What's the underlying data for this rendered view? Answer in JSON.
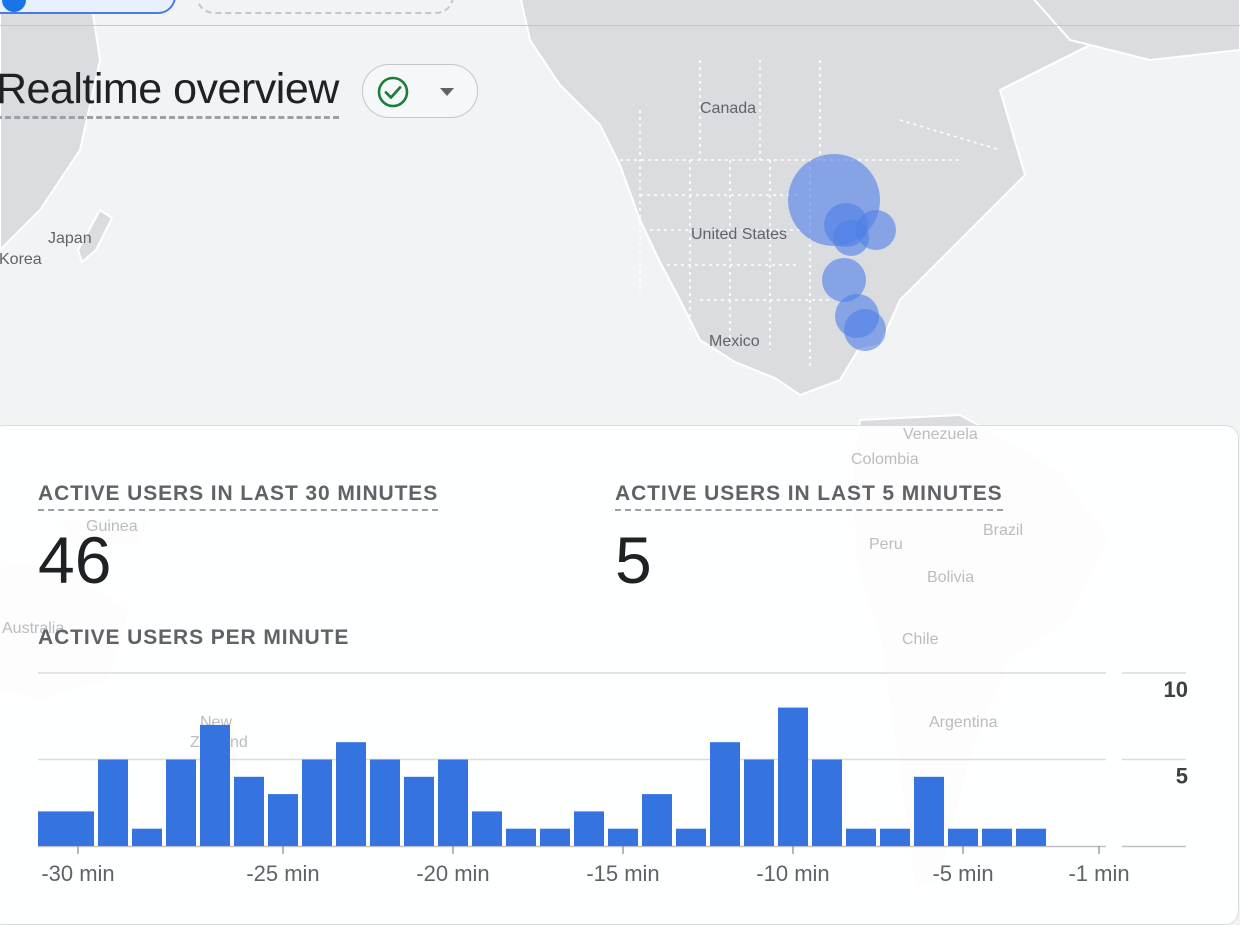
{
  "header": {
    "title": "Realtime overview"
  },
  "map": {
    "labels": [
      {
        "key": "canada",
        "text": "Canada"
      },
      {
        "key": "united-states",
        "text": "United States"
      },
      {
        "key": "mexico",
        "text": "Mexico"
      },
      {
        "key": "japan",
        "text": "Japan"
      },
      {
        "key": "korea",
        "text": "Korea"
      },
      {
        "key": "venezuela",
        "text": "Venezuela"
      },
      {
        "key": "colombia",
        "text": "Colombia"
      },
      {
        "key": "guinea",
        "text": "Guinea"
      },
      {
        "key": "peru",
        "text": "Peru"
      },
      {
        "key": "brazil",
        "text": "Brazil"
      },
      {
        "key": "bolivia",
        "text": "Bolivia"
      },
      {
        "key": "australia",
        "text": "Australia"
      },
      {
        "key": "chile",
        "text": "Chile"
      },
      {
        "key": "argentina",
        "text": "Argentina"
      },
      {
        "key": "new-zealand-1",
        "text": "New"
      },
      {
        "key": "new-zealand-2",
        "text": "Zealand"
      }
    ]
  },
  "metrics": {
    "last30": {
      "label": "ACTIVE USERS IN LAST 30 MINUTES",
      "value": "46"
    },
    "last5": {
      "label": "ACTIVE USERS IN LAST 5 MINUTES",
      "value": "5"
    }
  },
  "colors": {
    "bar": "#3473e0",
    "bubble": "#4f7fe8",
    "accent": "#1a73e8",
    "check": "#188038"
  },
  "chart_data": {
    "type": "bar",
    "title": "ACTIVE USERS PER MINUTE",
    "x_tick_labels": [
      "-30 min",
      "-25 min",
      "-20 min",
      "-15 min",
      "-10 min",
      "-5 min",
      "-1 min"
    ],
    "y_tick_labels": [
      "10",
      "5"
    ],
    "ylim": [
      0,
      10
    ],
    "minutes": [
      -31,
      -30,
      -29,
      -28,
      -27,
      -26,
      -25,
      -24,
      -23,
      -22,
      -21,
      -20,
      -19,
      -18,
      -17,
      -16,
      -15,
      -14,
      -13,
      -12,
      -11,
      -10,
      -9,
      -8,
      -7,
      -6,
      -5,
      -4,
      -3,
      -2,
      -1
    ],
    "values": [
      2,
      5,
      1,
      5,
      7,
      4,
      3,
      5,
      6,
      5,
      4,
      5,
      2,
      1,
      1,
      2,
      1,
      3,
      1,
      6,
      5,
      8,
      5,
      1,
      1,
      4,
      1,
      1,
      1,
      0,
      0
    ],
    "grid": true
  }
}
